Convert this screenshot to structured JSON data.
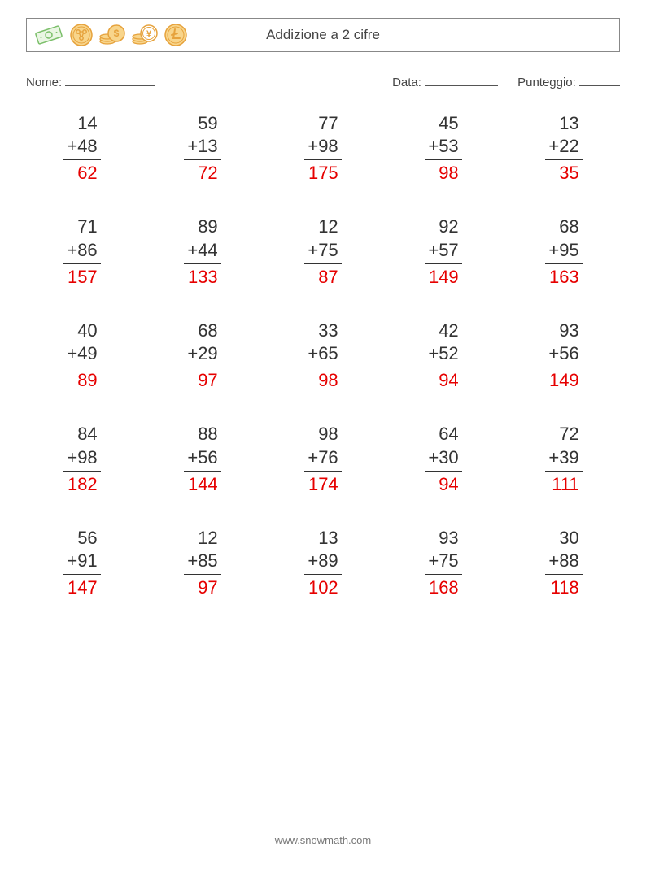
{
  "worksheet": {
    "title": "Addizione a 2 cifre",
    "labels": {
      "name": "Nome:",
      "date": "Data:",
      "score": "Punteggio:"
    },
    "blank_widths": {
      "name": 110,
      "date": 90,
      "score": 50
    },
    "colors": {
      "text": "#444444",
      "answer": "#e60000",
      "icon_outline": "#e6a23c",
      "icon_fill": "#f8d58b",
      "icon_green": "#7bbf6a"
    },
    "fontsize": {
      "title": 17,
      "labels": 15,
      "numbers": 22
    },
    "grid": {
      "rows": 5,
      "cols": 5
    },
    "operation": "+",
    "problems": [
      {
        "a": 14,
        "b": 48,
        "ans": 62
      },
      {
        "a": 59,
        "b": 13,
        "ans": 72
      },
      {
        "a": 77,
        "b": 98,
        "ans": 175
      },
      {
        "a": 45,
        "b": 53,
        "ans": 98
      },
      {
        "a": 13,
        "b": 22,
        "ans": 35
      },
      {
        "a": 71,
        "b": 86,
        "ans": 157
      },
      {
        "a": 89,
        "b": 44,
        "ans": 133
      },
      {
        "a": 12,
        "b": 75,
        "ans": 87
      },
      {
        "a": 92,
        "b": 57,
        "ans": 149
      },
      {
        "a": 68,
        "b": 95,
        "ans": 163
      },
      {
        "a": 40,
        "b": 49,
        "ans": 89
      },
      {
        "a": 68,
        "b": 29,
        "ans": 97
      },
      {
        "a": 33,
        "b": 65,
        "ans": 98
      },
      {
        "a": 42,
        "b": 52,
        "ans": 94
      },
      {
        "a": 93,
        "b": 56,
        "ans": 149
      },
      {
        "a": 84,
        "b": 98,
        "ans": 182
      },
      {
        "a": 88,
        "b": 56,
        "ans": 144
      },
      {
        "a": 98,
        "b": 76,
        "ans": 174
      },
      {
        "a": 64,
        "b": 30,
        "ans": 94
      },
      {
        "a": 72,
        "b": 39,
        "ans": 111
      },
      {
        "a": 56,
        "b": 91,
        "ans": 147
      },
      {
        "a": 12,
        "b": 85,
        "ans": 97
      },
      {
        "a": 13,
        "b": 89,
        "ans": 102
      },
      {
        "a": 93,
        "b": 75,
        "ans": 168
      },
      {
        "a": 30,
        "b": 88,
        "ans": 118
      }
    ],
    "footer": "www.snowmath.com"
  }
}
